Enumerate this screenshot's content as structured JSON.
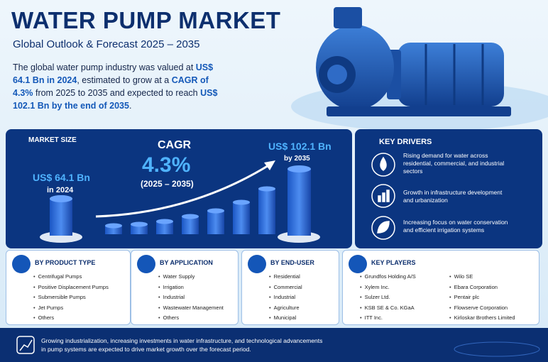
{
  "header": {
    "title": "WATER PUMP MARKET",
    "subtitle": "Global Outlook & Forecast 2025 – 2035"
  },
  "intro": [
    "The global water pump industry was valued at ",
    "US$ 64.1 Bn in 2024",
    ", estimated to grow at a ",
    "CAGR of 4.3%",
    " from 2025 to 2035 and expected to reach ",
    "US$ 102.1 Bn by the end of 2035",
    "."
  ],
  "market_size": {
    "label": "MARKET SIZE",
    "start_value": "US$ 64.1 Bn",
    "start_year": "in 2024",
    "end_value": "US$ 102.1 Bn",
    "end_year": "by 2035"
  },
  "cagr": {
    "label": "CAGR",
    "value": "4.3%",
    "period": "(2025 – 2035)"
  },
  "key_drivers": {
    "title": "KEY DRIVERS",
    "items": [
      "Rising demand for water across residential, commercial, and industrial sectors",
      "Growth in infrastructure development and urbanization",
      "Increasing focus on water conservation and efficient irrigation systems"
    ]
  },
  "segments": [
    {
      "title": "BY PRODUCT TYPE",
      "items": [
        "Centrifugal Pumps",
        "Positive Displacement Pumps",
        "Submersible Pumps",
        "Jet Pumps",
        "Others"
      ]
    },
    {
      "title": "BY APPLICATION",
      "items": [
        "Water Supply",
        "Irrigation",
        "Industrial",
        "Wastewater Management",
        "Others"
      ]
    },
    {
      "title": "BY END-USER",
      "items": [
        "Residential",
        "Commercial",
        "Industrial",
        "Agriculture",
        "Municipal"
      ]
    }
  ],
  "key_players": {
    "title": "KEY PLAYERS",
    "items": [
      "Grundfos Holding A/S",
      "Xylem Inc.",
      "Sulzer Ltd.",
      "KSB SE & Co. KGaA",
      "ITT Inc.",
      "Wilo SE",
      "Ebara Corporation",
      "Pentair plc",
      "Flowserve Corporation",
      "Kirloskar Brothers Limited"
    ]
  },
  "footer": {
    "text": "Growing industrialization, increasing investments in water infrastructure, and technological advancements in pump systems are expected to drive market growth over the forecast period."
  }
}
